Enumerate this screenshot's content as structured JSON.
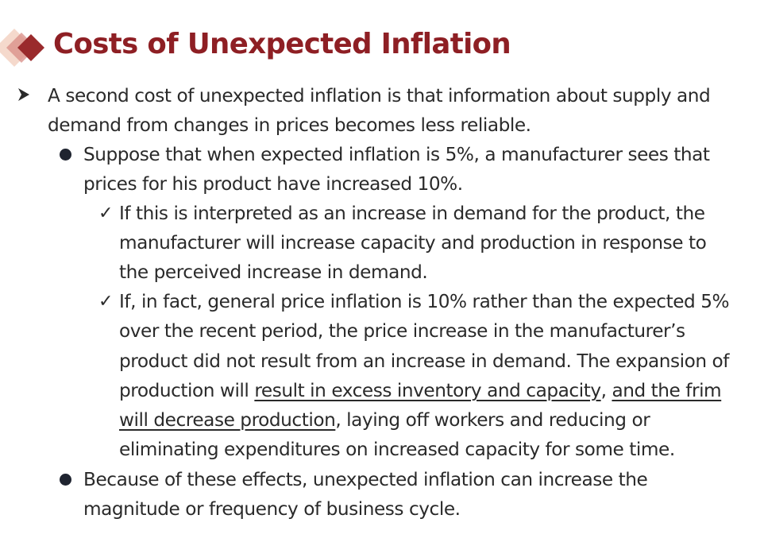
{
  "title": "Costs of Unexpected Inflation",
  "bullet_l1": {
    "icon": "arrow-bullet-icon",
    "lines": [
      "A second cost of unexpected inflation is that information about supply and",
      "demand from changes in prices becomes less reliable."
    ]
  },
  "bullet_l2a": {
    "icon": "dot-bullet-icon",
    "lines": [
      "Suppose that when expected inflation is 5%, a manufacturer sees that",
      "prices for his product have increased 10%."
    ]
  },
  "check_a": {
    "icon": "checkmark-icon",
    "glyph": "✓",
    "lines": [
      "If this is interpreted as an increase in demand for the product, the",
      "manufacturer will increase capacity and production in response to",
      "the perceived increase in demand."
    ]
  },
  "check_b": {
    "icon": "checkmark-icon",
    "glyph": "✓",
    "lines": [
      "If, in fact, general price inflation is 10% rather than the expected 5%",
      "over the recent period, the price increase in the manufacturer’s",
      "product did not result from an increase in demand. The expansion of"
    ],
    "line4": {
      "pre": "production will ",
      "underlined1": "result in excess inventory and capacity",
      "mid": ", ",
      "underlined2": "and the frim"
    },
    "line5": {
      "underlined": "will decrease production",
      "post": ", laying off workers and reducing or"
    },
    "line6": "eliminating expenditures on increased capacity for some time."
  },
  "bullet_l2b": {
    "icon": "dot-bullet-icon",
    "lines": [
      "Because of these effects, unexpected inflation can increase the",
      "magnitude or frequency of business cycle."
    ]
  },
  "colors": {
    "title": "#8e1f24",
    "logo_dark": "#9a2a2c",
    "logo_light": "#e8b8a8",
    "text": "#2a2a2a"
  }
}
